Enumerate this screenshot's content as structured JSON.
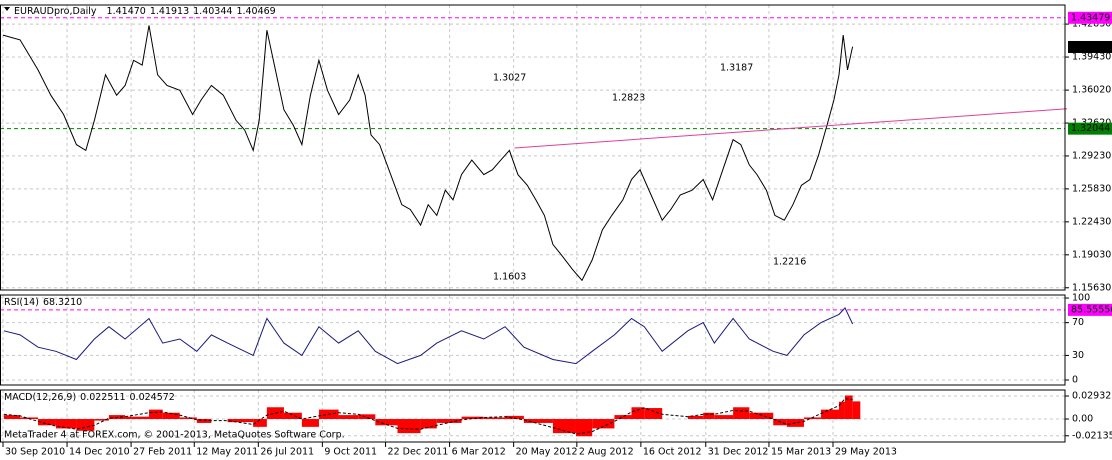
{
  "chart_data": [
    {
      "type": "line",
      "title": "EURAUDpro,Daily",
      "ohlc": [
        {
          "value": 1.4147,
          "label": "1.41470"
        },
        {
          "value": 1.41913,
          "label": "1.41913"
        },
        {
          "value": 1.40344,
          "label": "1.40344"
        },
        {
          "value": 1.40469,
          "label": "1.40469"
        }
      ],
      "x": [
        "2010-09-30",
        "2010-10-20",
        "2010-11-10",
        "2010-11-25",
        "2010-12-10",
        "2010-12-25",
        "2011-01-05",
        "2011-01-15",
        "2011-01-28",
        "2011-02-10",
        "2011-02-20",
        "2011-03-02",
        "2011-03-12",
        "2011-03-20",
        "2011-03-30",
        "2011-04-10",
        "2011-04-25",
        "2011-05-10",
        "2011-05-20",
        "2011-06-01",
        "2011-06-15",
        "2011-06-30",
        "2011-07-10",
        "2011-07-20",
        "2011-07-27",
        "2011-08-05",
        "2011-08-15",
        "2011-08-25",
        "2011-09-05",
        "2011-09-15",
        "2011-09-25",
        "2011-10-05",
        "2011-10-15",
        "2011-10-28",
        "2011-11-10",
        "2011-11-20",
        "2011-11-28",
        "2011-12-05",
        "2011-12-15",
        "2011-12-28",
        "2012-01-10",
        "2012-01-20",
        "2012-02-01",
        "2012-02-10",
        "2012-02-20",
        "2012-03-01",
        "2012-03-10",
        "2012-03-20",
        "2012-04-01",
        "2012-04-15",
        "2012-04-25",
        "2012-05-05",
        "2012-05-15",
        "2012-05-25",
        "2012-06-05",
        "2012-06-15",
        "2012-06-25",
        "2012-07-05",
        "2012-07-15",
        "2012-07-28",
        "2012-08-08",
        "2012-08-20",
        "2012-09-01",
        "2012-09-12",
        "2012-09-25",
        "2012-10-05",
        "2012-10-15",
        "2012-10-28",
        "2012-11-10",
        "2012-11-20",
        "2012-12-01",
        "2012-12-15",
        "2012-12-28",
        "2013-01-08",
        "2013-01-20",
        "2013-02-01",
        "2013-02-10",
        "2013-02-20",
        "2013-03-01",
        "2013-03-12",
        "2013-03-22",
        "2013-04-02",
        "2013-04-12",
        "2013-04-22",
        "2013-05-02",
        "2013-05-12",
        "2013-05-22",
        "2013-05-30",
        "2013-06-05",
        "2013-06-10",
        "2013-06-15",
        "2013-06-21"
      ],
      "series": [
        {
          "color": "#000000",
          "values": [
            1.417,
            1.412,
            1.381,
            1.355,
            1.335,
            1.304,
            1.298,
            1.329,
            1.376,
            1.355,
            1.365,
            1.391,
            1.386,
            1.427,
            1.376,
            1.365,
            1.36,
            1.335,
            1.35,
            1.365,
            1.355,
            1.329,
            1.319,
            1.298,
            1.329,
            1.422,
            1.381,
            1.34,
            1.324,
            1.304,
            1.355,
            1.391,
            1.36,
            1.335,
            1.35,
            1.376,
            1.355,
            1.314,
            1.304,
            1.273,
            1.242,
            1.237,
            1.221,
            1.242,
            1.231,
            1.257,
            1.247,
            1.273,
            1.288,
            1.273,
            1.278,
            1.288,
            1.298,
            1.273,
            1.262,
            1.247,
            1.231,
            1.201,
            1.19,
            1.175,
            1.164,
            1.185,
            1.216,
            1.231,
            1.247,
            1.268,
            1.278,
            1.252,
            1.226,
            1.237,
            1.252,
            1.257,
            1.268,
            1.247,
            1.278,
            1.309,
            1.304,
            1.283,
            1.273,
            1.257,
            1.231,
            1.226,
            1.242,
            1.262,
            1.268,
            1.293,
            1.324,
            1.35,
            1.376,
            1.417,
            1.381,
            1.405
          ]
        }
      ],
      "ylim": [
        1.154,
        1.448
      ],
      "yticks": [
        {
          "value": 1.4283,
          "label": "1.42830"
        },
        {
          "value": 1.3943,
          "label": "1.39430"
        },
        {
          "value": 1.3602,
          "label": "1.36020"
        },
        {
          "value": 1.3262,
          "label": "1.32620"
        },
        {
          "value": 1.2923,
          "label": "1.29230"
        },
        {
          "value": 1.2583,
          "label": "1.25830"
        },
        {
          "value": 1.2243,
          "label": "1.22430"
        },
        {
          "value": 1.1903,
          "label": "1.19030"
        },
        {
          "value": 1.1563,
          "label": "1.15630"
        }
      ],
      "hlines": [
        {
          "value": 1.43479,
          "color": "#ff00ff"
        },
        {
          "value": 1.32044,
          "color": "#008000"
        }
      ],
      "last_price": 1.40469,
      "trendline": {
        "x": [
          "2012-05-21",
          "2014-02-27"
        ],
        "values": [
          1.3005,
          1.341
        ],
        "color": "#e0409a"
      },
      "annotations": [
        {
          "text": "1.3027",
          "color": "#2b2bb0"
        },
        {
          "text": "1.2823",
          "color": "#8b1a1a"
        },
        {
          "text": "1.3187",
          "color": "#2b2bb0"
        },
        {
          "text": "1.1603",
          "color": "#8b1a1a"
        },
        {
          "text": "1.2216",
          "color": "#8b1a1a"
        }
      ],
      "grid": true
    },
    {
      "type": "line",
      "title": "RSI(14)",
      "last_value": {
        "value": 68.321,
        "label": "68.3210"
      },
      "x": [
        "2010-10-01",
        "2010-10-20",
        "2010-11-10",
        "2010-12-01",
        "2010-12-25",
        "2011-01-15",
        "2011-02-01",
        "2011-02-20",
        "2011-03-20",
        "2011-04-05",
        "2011-04-25",
        "2011-05-15",
        "2011-06-01",
        "2011-06-20",
        "2011-07-20",
        "2011-08-05",
        "2011-08-25",
        "2011-09-15",
        "2011-10-05",
        "2011-10-28",
        "2011-11-20",
        "2011-12-10",
        "2012-01-05",
        "2012-02-01",
        "2012-02-20",
        "2012-03-20",
        "2012-04-15",
        "2012-05-10",
        "2012-06-01",
        "2012-07-05",
        "2012-08-01",
        "2012-08-20",
        "2012-09-15",
        "2012-10-05",
        "2012-10-20",
        "2012-11-10",
        "2012-12-10",
        "2012-12-28",
        "2013-01-10",
        "2013-02-01",
        "2013-02-20",
        "2013-03-20",
        "2013-04-05",
        "2013-04-25",
        "2013-05-15",
        "2013-06-05",
        "2013-06-12",
        "2013-06-21"
      ],
      "series": [
        {
          "color": "#1a1a80",
          "values": [
            60,
            55,
            40,
            35,
            25,
            50,
            65,
            50,
            75,
            45,
            50,
            35,
            55,
            45,
            30,
            75,
            45,
            30,
            65,
            45,
            60,
            35,
            20,
            30,
            45,
            60,
            50,
            65,
            40,
            25,
            20,
            35,
            55,
            75,
            65,
            35,
            60,
            70,
            45,
            75,
            50,
            35,
            30,
            55,
            70,
            80,
            88,
            68.321
          ]
        }
      ],
      "ylim": [
        -6.1,
        103.7
      ],
      "yticks": [
        100,
        70,
        30,
        0
      ],
      "hlines": [
        {
          "value": 85.55556,
          "color": "#ff00ff"
        }
      ],
      "grid": true
    },
    {
      "type": "macd",
      "title": "MACD(12,26,9)",
      "last_values": [
        0.022511,
        0.024572
      ],
      "x": [
        "2010-10-01",
        "2010-10-20",
        "2010-11-10",
        "2010-12-01",
        "2010-12-25",
        "2011-01-15",
        "2011-02-01",
        "2011-02-20",
        "2011-03-20",
        "2011-04-05",
        "2011-04-25",
        "2011-05-15",
        "2011-06-01",
        "2011-06-20",
        "2011-07-20",
        "2011-08-05",
        "2011-08-25",
        "2011-09-15",
        "2011-10-05",
        "2011-10-28",
        "2011-11-20",
        "2011-12-10",
        "2012-01-05",
        "2012-02-01",
        "2012-02-20",
        "2012-03-20",
        "2012-04-15",
        "2012-05-10",
        "2012-06-01",
        "2012-07-05",
        "2012-08-01",
        "2012-08-20",
        "2012-09-15",
        "2012-10-05",
        "2012-10-20",
        "2012-11-10",
        "2012-12-10",
        "2012-12-28",
        "2013-01-10",
        "2013-02-01",
        "2013-02-20",
        "2013-03-20",
        "2013-04-05",
        "2013-04-25",
        "2013-05-15",
        "2013-06-05",
        "2013-06-12",
        "2013-06-21"
      ],
      "series": [
        {
          "color": "#ff0000",
          "values": [
            0.005,
            0.002,
            -0.008,
            -0.012,
            -0.015,
            -0.002,
            0.005,
            0.003,
            0.012,
            0.008,
            0.002,
            -0.005,
            0,
            -0.004,
            -0.01,
            0.015,
            0.008,
            -0.01,
            0.012,
            0.005,
            0.006,
            -0.008,
            -0.018,
            -0.012,
            -0.005,
            0.003,
            0.002,
            0.004,
            -0.005,
            -0.018,
            -0.022,
            -0.012,
            0.005,
            0.015,
            0.014,
            0,
            0.004,
            0.008,
            0.005,
            0.015,
            0.008,
            -0.008,
            -0.01,
            0.002,
            0.012,
            0.022,
            0.03,
            0.0225
          ]
        },
        {
          "color": "#000000",
          "values": [
            0.006,
            0.004,
            -0.003,
            -0.009,
            -0.013,
            -0.008,
            0.001,
            0.003,
            0.008,
            0.009,
            0.005,
            -0.001,
            -0.002,
            -0.002,
            -0.007,
            0.005,
            0.01,
            0,
            0.004,
            0.008,
            0.006,
            -0.002,
            -0.012,
            -0.013,
            -0.008,
            -0.001,
            0.002,
            0.003,
            -0.001,
            -0.011,
            -0.019,
            -0.016,
            -0.003,
            0.009,
            0.014,
            0.006,
            0.003,
            0.006,
            0.006,
            0.011,
            0.01,
            0,
            -0.007,
            -0.003,
            0.007,
            0.017,
            0.026,
            0.0246
          ]
        }
      ],
      "ylim": [
        -0.0293,
        0.037
      ],
      "yticks": [
        0.029321,
        {
          "value": 0,
          "label": "0.00"
        },
        -0.021358
      ],
      "xticks": [
        {
          "value": "2010-09-30",
          "label": "30 Sep 2010"
        },
        {
          "value": "2010-12-14",
          "label": "14 Dec 2010"
        },
        {
          "value": "2011-02-27",
          "label": "27 Feb 2011"
        },
        {
          "value": "2011-05-12",
          "label": "12 May 2011"
        },
        {
          "value": "2011-07-26",
          "label": "26 Jul 2011"
        },
        {
          "value": "2011-10-09",
          "label": "9 Oct 2011"
        },
        {
          "value": "2011-12-22",
          "label": "22 Dec 2011"
        },
        {
          "value": "2012-03-06",
          "label": "6 Mar 2012"
        },
        {
          "value": "2012-05-20",
          "label": "20 May 2012"
        },
        {
          "value": "2012-08-02",
          "label": "2 Aug 2012"
        },
        {
          "value": "2012-10-16",
          "label": "16 Oct 2012"
        },
        {
          "value": "2012-12-31",
          "label": "31 Dec 2012"
        },
        {
          "value": "2013-03-15",
          "label": "15 Mar 2013"
        },
        {
          "value": "2013-05-29",
          "label": "29 May 2013"
        }
      ],
      "grid": true
    }
  ],
  "footer": "MetaTrader 4 at FOREX.com, © 2001-2013, MetaQuotes Software Corp."
}
